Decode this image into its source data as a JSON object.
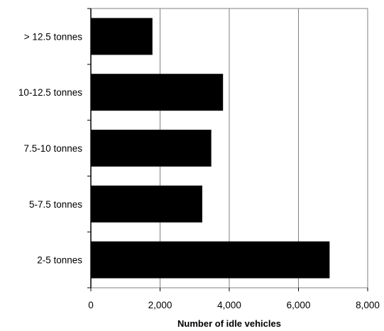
{
  "chart_data": {
    "type": "bar",
    "orientation": "horizontal",
    "title": "",
    "xlabel": "Number of idle vehicles",
    "ylabel": "",
    "categories": [
      "> 12.5 tonnes",
      "10-12.5 tonnes",
      "7.5-10 tonnes",
      "5-7.5 tonnes",
      "2-5 tonnes"
    ],
    "values": [
      1780,
      3820,
      3480,
      3220,
      6900
    ],
    "xlim": [
      0,
      8000
    ],
    "xticks": [
      0,
      2000,
      4000,
      6000,
      8000
    ],
    "xtick_labels": [
      "0",
      "2,000",
      "4,000",
      "6,000",
      "8,000"
    ],
    "grid": "vertical",
    "legend": "none",
    "colors": {
      "bar": "#000000",
      "grid": "#808080",
      "frame": "#808080",
      "text": "#000000"
    }
  }
}
